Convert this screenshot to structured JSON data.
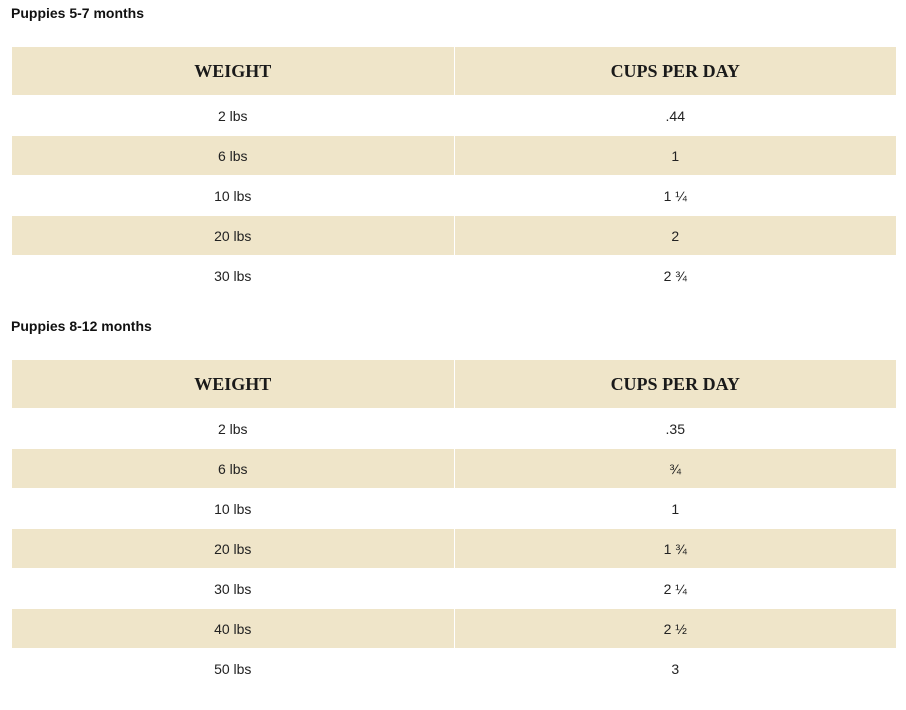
{
  "sections": [
    {
      "title": "Puppies 5-7 months",
      "table": {
        "header": [
          "WEIGHT",
          "CUPS PER DAY"
        ],
        "rows": [
          [
            "2 lbs",
            ".44"
          ],
          [
            "6 lbs",
            "1"
          ],
          [
            "10 lbs",
            "1 ¼"
          ],
          [
            "20 lbs",
            "2"
          ],
          [
            "30 lbs",
            "2 ¾"
          ]
        ]
      }
    },
    {
      "title": "Puppies 8-12 months",
      "table": {
        "header": [
          "WEIGHT",
          "CUPS PER DAY"
        ],
        "rows": [
          [
            "2 lbs",
            ".35"
          ],
          [
            "6 lbs",
            "¾"
          ],
          [
            "10 lbs",
            "1"
          ],
          [
            "20 lbs",
            "1 ¾"
          ],
          [
            "30 lbs",
            "2 ¼"
          ],
          [
            "40 lbs",
            "2 ½"
          ],
          [
            "50 lbs",
            "3"
          ]
        ]
      }
    }
  ]
}
